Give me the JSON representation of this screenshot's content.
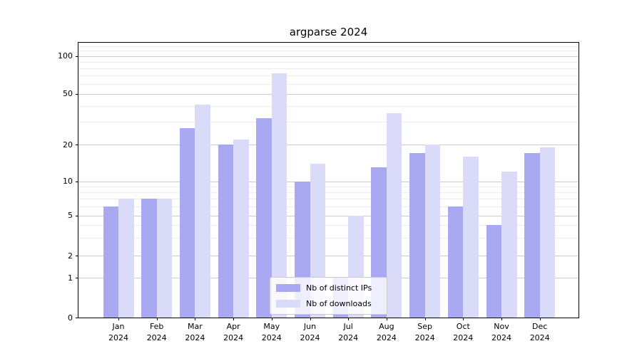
{
  "title": "argparse 2024",
  "colors": {
    "distinct_ips": "#a9a9f2",
    "downloads": "#dadaf9",
    "grid_major": "#cbcbcb",
    "grid_minor": "#ececec",
    "axis": "#000000",
    "background": "#ffffff"
  },
  "legend": {
    "items": [
      {
        "label": "Nb of distinct IPs",
        "series_key": "distinct_ips"
      },
      {
        "label": "Nb of downloads",
        "series_key": "downloads"
      }
    ]
  },
  "y_axis": {
    "tick_labels": [
      "100",
      "50",
      "20",
      "10",
      "5",
      "2",
      "1",
      "0"
    ]
  },
  "x_axis": {
    "months": [
      "Jan",
      "Feb",
      "Mar",
      "Apr",
      "May",
      "Jun",
      "Jul",
      "Aug",
      "Sep",
      "Oct",
      "Nov",
      "Dec"
    ],
    "year": "2024"
  },
  "chart_data": {
    "type": "bar",
    "title": "argparse 2024",
    "categories": [
      "Jan 2024",
      "Feb 2024",
      "Mar 2024",
      "Apr 2024",
      "May 2024",
      "Jun 2024",
      "Jul 2024",
      "Aug 2024",
      "Sep 2024",
      "Oct 2024",
      "Nov 2024",
      "Dec 2024"
    ],
    "series": [
      {
        "name": "Nb of distinct IPs",
        "color": "#a9a9f2",
        "values": [
          6,
          7,
          27,
          20,
          32,
          10,
          1,
          13,
          17,
          6,
          4,
          17
        ]
      },
      {
        "name": "Nb of downloads",
        "color": "#dadaf9",
        "values": [
          7,
          7,
          41,
          22,
          73,
          14,
          5,
          35,
          20,
          16,
          12,
          19
        ]
      }
    ],
    "yscale": "symlog",
    "yticks": [
      0,
      1,
      2,
      5,
      10,
      20,
      50,
      100
    ],
    "minor_gridlines": [
      3,
      4,
      6,
      7,
      8,
      9,
      30,
      40,
      60,
      70,
      80,
      90,
      110,
      120
    ],
    "ylim": [
      0,
      130
    ],
    "grid": true,
    "legend_position": "lower center inside"
  }
}
